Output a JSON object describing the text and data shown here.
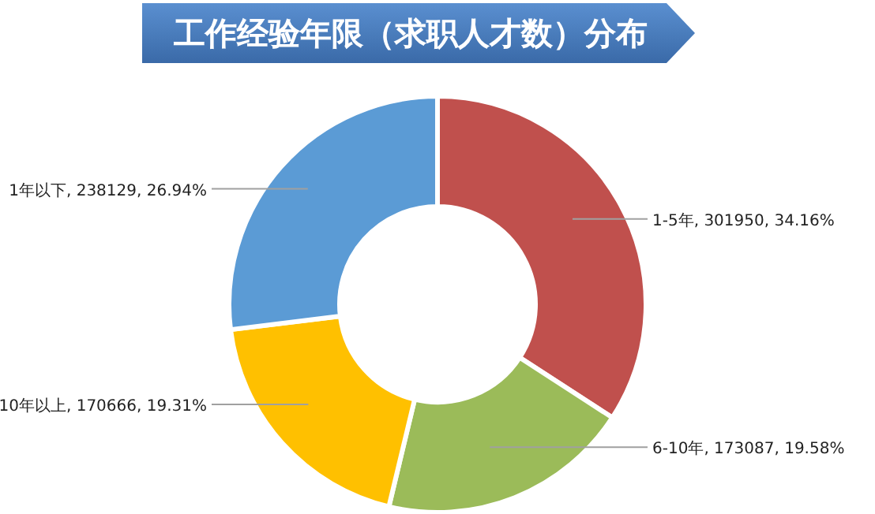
{
  "chart_data": {
    "type": "donut",
    "title": "工作经验年限（求职人才数）分布",
    "categories": [
      "1-5年",
      "6-10年",
      "10年以上",
      "1年以下"
    ],
    "values": [
      301950,
      173087,
      170666,
      238129
    ],
    "colors": [
      "#c0504d",
      "#9bbb59",
      "#ffc000",
      "#5b9bd5"
    ],
    "value_labels": [
      "301950, 34.16%",
      "173087, 19.58%",
      "170666, 19.31%",
      "238129, 26.94%"
    ]
  }
}
